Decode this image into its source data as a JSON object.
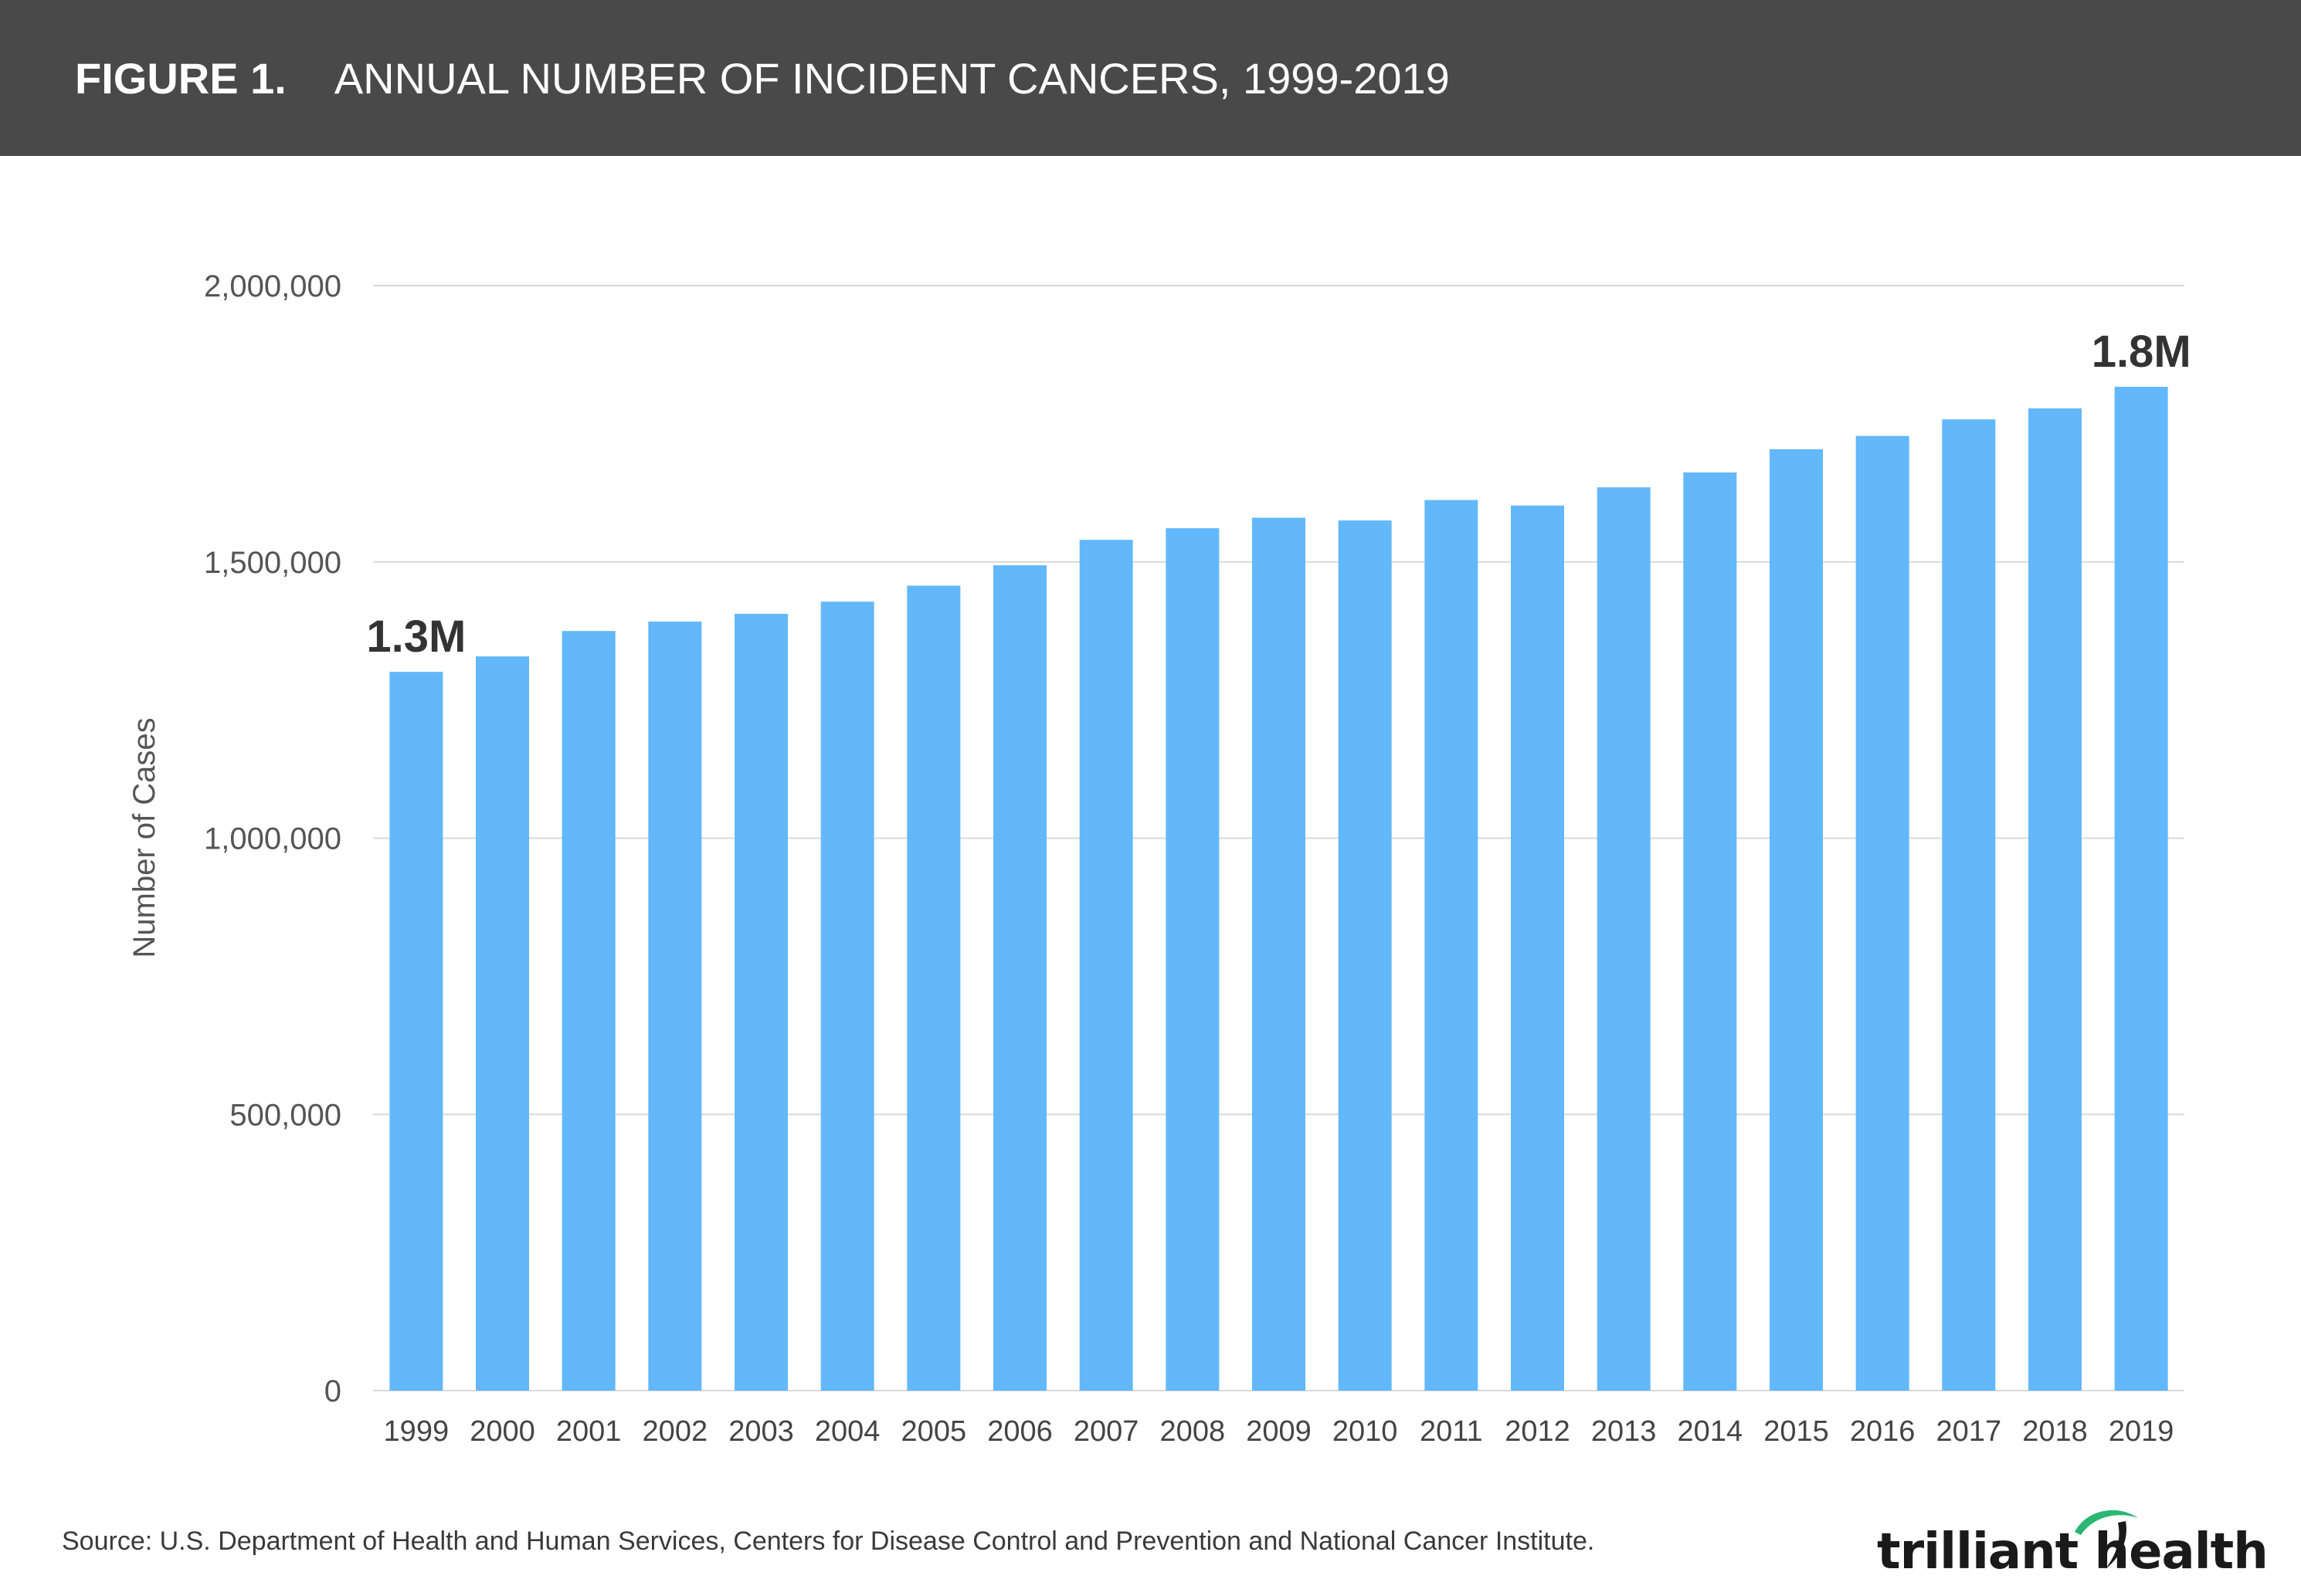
{
  "header": {
    "figure_label": "FIGURE 1.",
    "title": "ANNUAL NUMBER OF INCIDENT CANCERS, 1999-2019"
  },
  "chart_data": {
    "type": "bar",
    "ylabel": "Number of Cases",
    "ylim": [
      0,
      2000000
    ],
    "yticks": [
      0,
      500000,
      1000000,
      1500000,
      2000000
    ],
    "ytick_labels": [
      "0",
      "500,000",
      "1,000,000",
      "1,500,000",
      "2,000,000"
    ],
    "grid": true,
    "bar_color": "#62b8fb",
    "categories": [
      "1999",
      "2000",
      "2001",
      "2002",
      "2003",
      "2004",
      "2005",
      "2006",
      "2007",
      "2008",
      "2009",
      "2010",
      "2011",
      "2012",
      "2013",
      "2014",
      "2015",
      "2016",
      "2017",
      "2018",
      "2019"
    ],
    "values": [
      1301000,
      1329000,
      1375000,
      1392000,
      1406000,
      1428000,
      1457000,
      1494000,
      1540000,
      1561000,
      1580000,
      1575000,
      1612000,
      1602000,
      1635000,
      1662000,
      1704000,
      1728000,
      1758000,
      1778000,
      1817000
    ],
    "annotations": [
      {
        "index": 0,
        "text": "1.3M"
      },
      {
        "index": 20,
        "text": "1.8M"
      }
    ]
  },
  "footer": {
    "source": "Source: U.S. Department of Health and Human Services, Centers for Disease Control and Prevention and National Cancer Institute.",
    "logo_text": "trilliant health",
    "logo_accent_color": "#2bb673"
  }
}
